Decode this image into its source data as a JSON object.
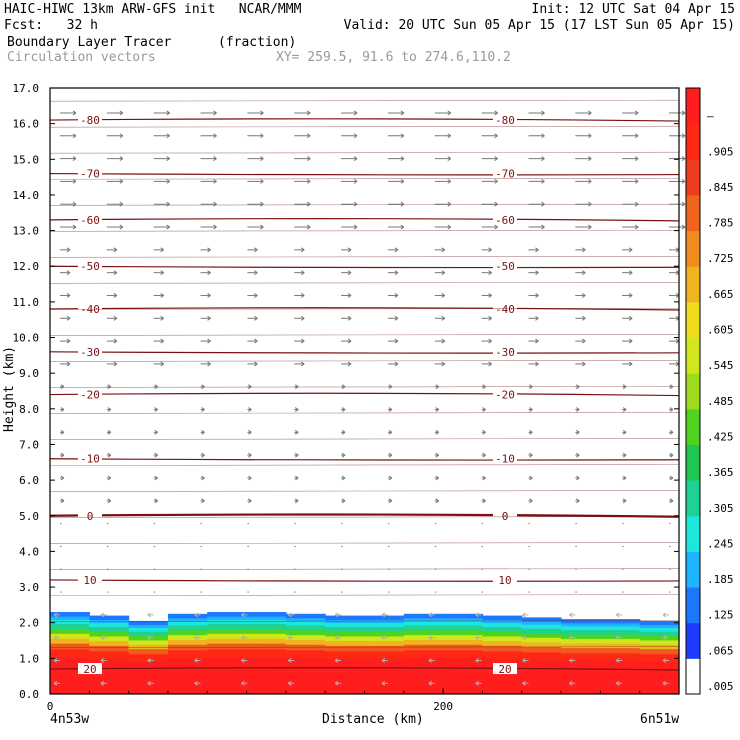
{
  "header": {
    "title_left": "HAIC-HIWC 13km ARW-GFS init   NCAR/MMM",
    "init": "Init: 12 UTC Sat 04 Apr 15",
    "fcst": "Fcst:   32 h",
    "valid": "Valid: 20 UTC Sun 05 Apr 15 (17 LST Sun 05 Apr 15)",
    "field1": "Boundary Layer Tracer",
    "field1_units": "(fraction)",
    "field2": "Circulation vectors",
    "xy_range": "XY= 259.5, 91.6 to 274.6,110.2"
  },
  "chart_data": {
    "type": "heatmap",
    "title": "Boundary Layer Tracer",
    "xlabel": "Distance (km)",
    "ylabel": "Height (km)",
    "ylim": [
      0,
      17
    ],
    "xlim": [
      0,
      320
    ],
    "x_ticks": [
      {
        "value": 0,
        "label": "0"
      },
      {
        "value": 200,
        "label": "200"
      }
    ],
    "x_end_labels": {
      "left": "4n53w",
      "right": "6n51w"
    },
    "y_ticks": [
      "0.0",
      "1.0",
      "2.0",
      "3.0",
      "4.0",
      "5.0",
      "6.0",
      "7.0",
      "8.0",
      "9.0",
      "10.0",
      "11.0",
      "12.0",
      "13.0",
      "14.0",
      "15.0",
      "16.0",
      "17.0"
    ],
    "colorbar": {
      "labels": [
        ".005",
        ".065",
        ".125",
        ".185",
        ".245",
        ".305",
        ".365",
        ".425",
        ".485",
        ".545",
        ".605",
        ".665",
        ".725",
        ".785",
        ".845",
        ".905",
        "–"
      ],
      "colors": [
        "#ffffff",
        "#1e3cff",
        "#1e78ff",
        "#1eb4ff",
        "#1ee6dc",
        "#1ed296",
        "#1ec850",
        "#50d21e",
        "#a0dc1e",
        "#d2e61e",
        "#f0dc1e",
        "#f0b41e",
        "#f08c1e",
        "#f0641e",
        "#f03c1e",
        "#ff2814",
        "#ff1e1e"
      ]
    },
    "temperature_contours": [
      {
        "label": "-80",
        "height": 16.1
      },
      {
        "label": "-70",
        "height": 14.6
      },
      {
        "label": "-60",
        "height": 13.3
      },
      {
        "label": "-50",
        "height": 12.0
      },
      {
        "label": "-40",
        "height": 10.8
      },
      {
        "label": "-30",
        "height": 9.6
      },
      {
        "label": "-20",
        "height": 8.4
      },
      {
        "label": "-10",
        "height": 6.6
      },
      {
        "label": "0",
        "height": 5.0
      },
      {
        "label": "10",
        "height": 3.2
      },
      {
        "label": "20",
        "height": 0.7
      }
    ],
    "boundary_layer_top_km": 2.3,
    "series": [
      {
        "values": [
          [
            2.3,
            2.2,
            2.05,
            2.25,
            2.3,
            2.3,
            2.25,
            2.2,
            2.2,
            2.25,
            2.25,
            2.2,
            2.15,
            2.1,
            2.1,
            2.05
          ]
        ]
      }
    ]
  }
}
